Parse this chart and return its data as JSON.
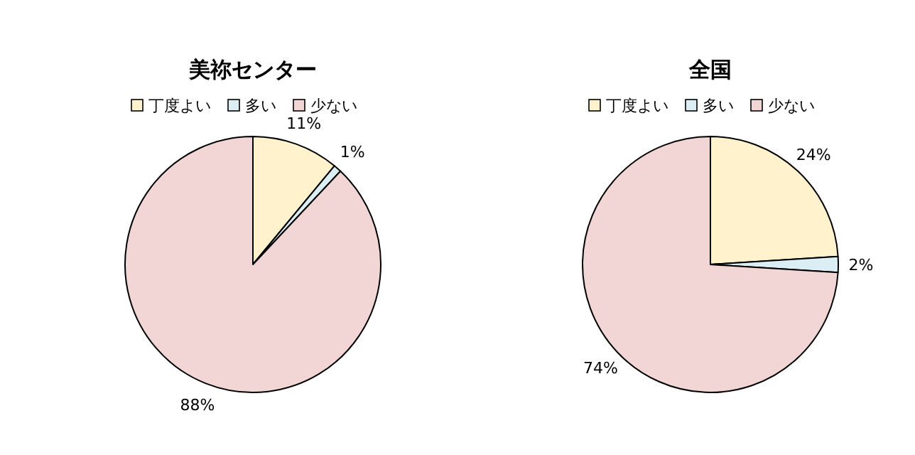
{
  "chart_data": [
    {
      "type": "pie",
      "title": "美祢センター",
      "categories": [
        "丁度よい",
        "多い",
        "少ない"
      ],
      "values": [
        11,
        1,
        88
      ],
      "colors": [
        "#fff2cc",
        "#dbeef3",
        "#f2d5d5"
      ],
      "value_labels": [
        "11%",
        "1%",
        "88%"
      ],
      "legend": "top"
    },
    {
      "type": "pie",
      "title": "全国",
      "categories": [
        "丁度よい",
        "多い",
        "少ない"
      ],
      "values": [
        24,
        2,
        74
      ],
      "colors": [
        "#fff2cc",
        "#dbeef3",
        "#f2d5d5"
      ],
      "value_labels": [
        "24%",
        "2%",
        "74%"
      ],
      "legend": "top"
    }
  ]
}
